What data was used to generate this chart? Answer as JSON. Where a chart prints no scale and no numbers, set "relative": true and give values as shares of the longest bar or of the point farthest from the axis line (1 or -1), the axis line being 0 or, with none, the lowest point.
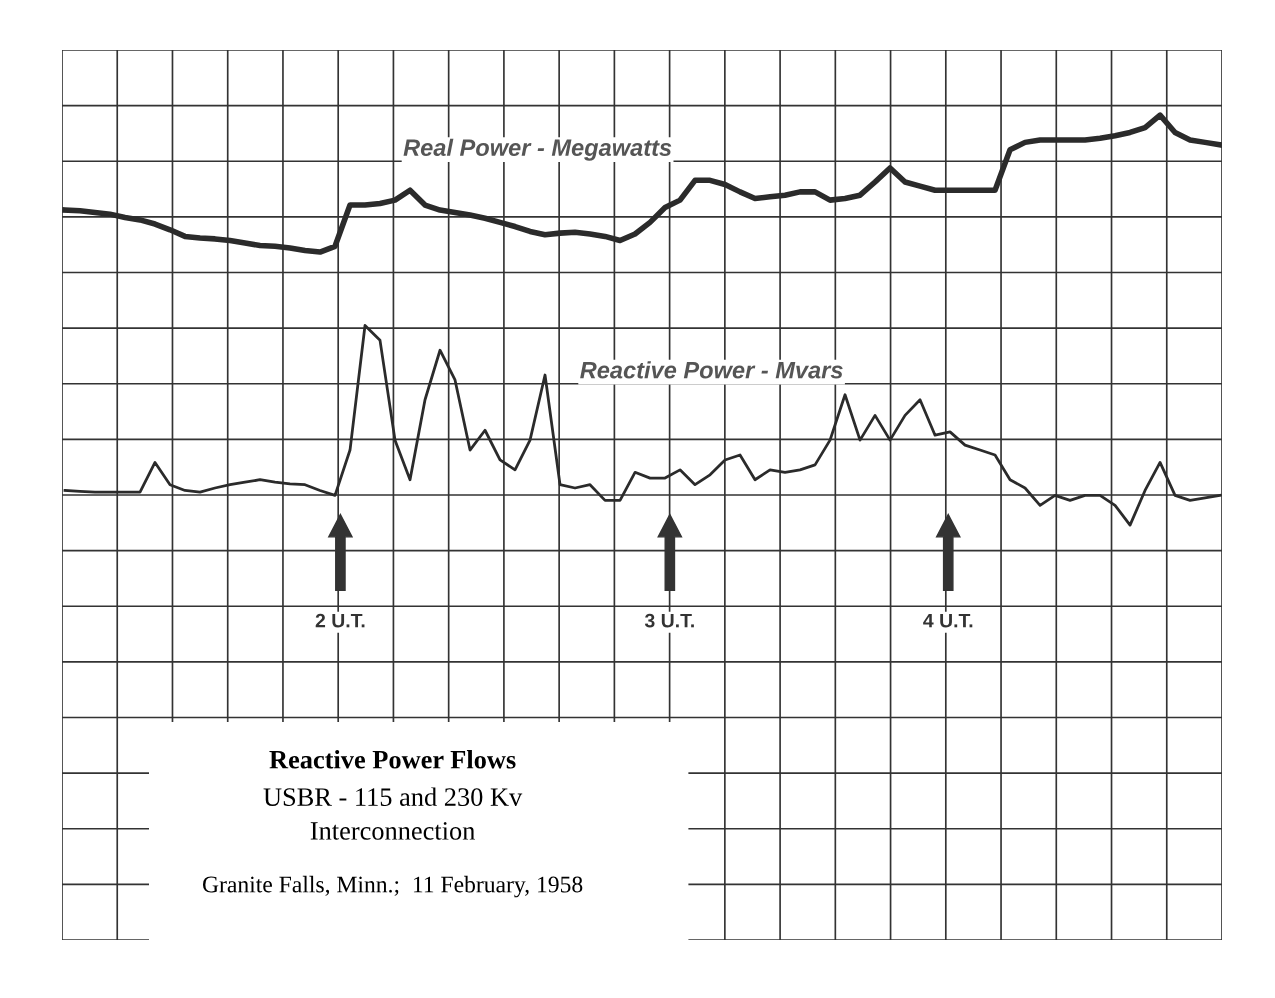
{
  "chart_data": {
    "type": "line",
    "title": "Reactive Power Flows",
    "subtitle": "USBR - 115 and 230 Kv",
    "relative": true,
    "grid": true,
    "categories": [
      null,
      null,
      null,
      null,
      null,
      null,
      null,
      null,
      null,
      null,
      null,
      null,
      null,
      null,
      null,
      null,
      null,
      null,
      null,
      null,
      null,
      null,
      null,
      null,
      null,
      null,
      null,
      null,
      null,
      null,
      null,
      null,
      null,
      null,
      null,
      null,
      null,
      null,
      null,
      null,
      null,
      null,
      null,
      null,
      null,
      null,
      null,
      null,
      null,
      null,
      null,
      null,
      null,
      null,
      null,
      null,
      null,
      null,
      null,
      null,
      null,
      null,
      null,
      null,
      null,
      null,
      null,
      null,
      null,
      null,
      null,
      null,
      null,
      null,
      null,
      null,
      null,
      null
    ],
    "series": [
      {
        "name": "Real Power - Megawatts",
        "color": "#2b2b2b",
        "values": [
          0.885,
          0.884,
          0.882,
          0.88,
          0.876,
          0.873,
          0.868,
          0.861,
          0.853,
          0.851,
          0.85,
          0.848,
          0.845,
          0.842,
          0.841,
          0.839,
          0.836,
          0.834,
          0.841,
          0.891,
          0.891,
          0.893,
          0.897,
          0.909,
          0.891,
          0.885,
          0.882,
          0.879,
          0.875,
          0.87,
          0.865,
          0.859,
          0.855,
          0.857,
          0.858,
          0.856,
          0.853,
          0.848,
          0.856,
          0.87,
          0.888,
          0.897,
          0.921,
          0.921,
          0.916,
          0.907,
          0.899,
          0.901,
          0.903,
          0.907,
          0.907,
          0.897,
          0.899,
          0.903,
          0.919,
          0.936,
          0.919,
          0.914,
          0.909,
          0.909,
          0.909,
          0.909,
          0.909,
          0.958,
          0.967,
          0.97,
          0.97,
          0.97,
          0.97,
          0.972,
          0.975,
          0.979,
          0.985,
          1.0,
          0.979,
          0.97,
          0.967,
          0.964
        ]
      },
      {
        "name": "Reactive Power - Mvars",
        "color": "#2b2b2b",
        "values": [
          0.545,
          0.544,
          0.543,
          0.543,
          0.543,
          0.543,
          0.579,
          0.552,
          0.545,
          0.543,
          0.548,
          0.552,
          0.555,
          0.558,
          0.555,
          0.553,
          0.552,
          0.545,
          0.539,
          0.594,
          0.745,
          0.727,
          0.606,
          0.558,
          0.655,
          0.715,
          0.679,
          0.594,
          0.618,
          0.582,
          0.57,
          0.606,
          0.685,
          0.552,
          0.548,
          0.552,
          0.533,
          0.533,
          0.567,
          0.56,
          0.56,
          0.57,
          0.552,
          0.564,
          0.582,
          0.588,
          0.558,
          0.57,
          0.567,
          0.57,
          0.576,
          0.606,
          0.661,
          0.606,
          0.636,
          0.606,
          0.636,
          0.655,
          0.612,
          0.616,
          0.6,
          0.594,
          0.588,
          0.558,
          0.548,
          0.527,
          0.539,
          0.533,
          0.539,
          0.539,
          0.527,
          0.503,
          0.545,
          0.579,
          0.539,
          0.533,
          0.536,
          0.539
        ]
      }
    ],
    "annotations": [
      "2 U.T.",
      "3 U.T.",
      "4 U.T.",
      "Interconnection",
      "Granite Falls, Minn.;  11 February, 1958"
    ]
  }
}
